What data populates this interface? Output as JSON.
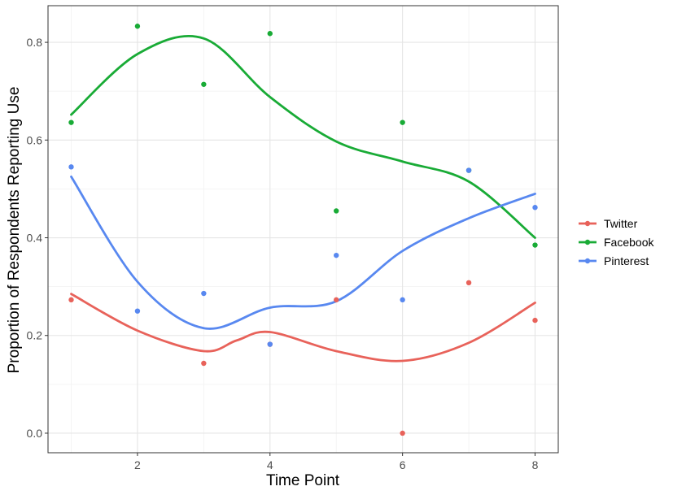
{
  "chart_data": {
    "type": "scatter",
    "xlabel": "Time Point",
    "ylabel": "Proportion of Respondents Reporting Use",
    "xlim": [
      0.65,
      8.35
    ],
    "ylim": [
      -0.04,
      0.875
    ],
    "x_ticks": [
      2,
      4,
      6,
      8
    ],
    "x_tick_labels": [
      "2",
      "4",
      "6",
      "8"
    ],
    "y_ticks": [
      0.0,
      0.2,
      0.4,
      0.6,
      0.8
    ],
    "y_tick_labels": [
      "0.0",
      "0.2",
      "0.4",
      "0.6",
      "0.8"
    ],
    "grid": true,
    "legend_position": "right",
    "series": [
      {
        "name": "Twitter",
        "color": "#e8625a",
        "points": [
          [
            1,
            0.273
          ],
          [
            3,
            0.143
          ],
          [
            4,
            0.182
          ],
          [
            5,
            0.273
          ],
          [
            6,
            0.0
          ],
          [
            7,
            0.308
          ],
          [
            8,
            0.231
          ]
        ],
        "smooth": [
          [
            1,
            0.285
          ],
          [
            2,
            0.21
          ],
          [
            3,
            0.168
          ],
          [
            3.5,
            0.19
          ],
          [
            4,
            0.207
          ],
          [
            5,
            0.168
          ],
          [
            6,
            0.148
          ],
          [
            7,
            0.185
          ],
          [
            8,
            0.267
          ]
        ]
      },
      {
        "name": "Facebook",
        "color": "#19ab36",
        "points": [
          [
            1,
            0.636
          ],
          [
            2,
            0.833
          ],
          [
            3,
            0.714
          ],
          [
            4,
            0.818
          ],
          [
            5,
            0.455
          ],
          [
            6,
            0.636
          ],
          [
            7,
            0.538
          ],
          [
            8,
            0.385
          ]
        ],
        "smooth": [
          [
            1,
            0.652
          ],
          [
            2,
            0.776
          ],
          [
            3,
            0.808
          ],
          [
            4,
            0.688
          ],
          [
            5,
            0.597
          ],
          [
            6,
            0.556
          ],
          [
            7,
            0.515
          ],
          [
            8,
            0.4
          ]
        ]
      },
      {
        "name": "Pinterest",
        "color": "#5888f0",
        "points": [
          [
            1,
            0.545
          ],
          [
            2,
            0.25
          ],
          [
            3,
            0.286
          ],
          [
            4,
            0.182
          ],
          [
            5,
            0.364
          ],
          [
            6,
            0.273
          ],
          [
            7,
            0.538
          ],
          [
            8,
            0.462
          ]
        ],
        "smooth": [
          [
            1,
            0.525
          ],
          [
            2,
            0.31
          ],
          [
            3,
            0.215
          ],
          [
            4,
            0.257
          ],
          [
            5,
            0.27
          ],
          [
            6,
            0.373
          ],
          [
            7,
            0.44
          ],
          [
            8,
            0.49
          ]
        ]
      }
    ]
  }
}
